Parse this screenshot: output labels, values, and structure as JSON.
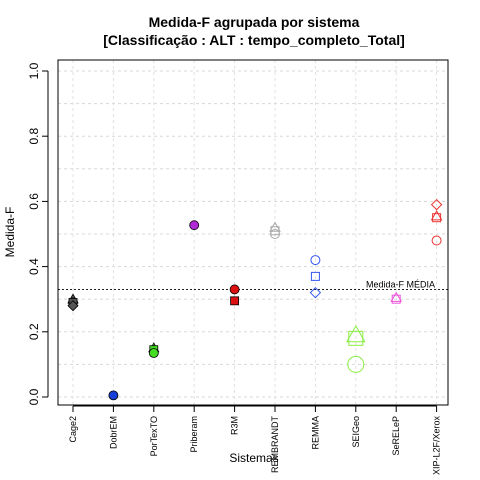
{
  "chart_data": {
    "type": "scatter",
    "title": "Medida-F agrupada por sistema",
    "subtitle": "[Classificação : ALT : tempo_completo_Total]",
    "xlabel": "Sistemas",
    "ylabel": "Medida-F",
    "ylim": [
      0,
      1
    ],
    "yticks": [
      "0.0",
      "0.2",
      "0.4",
      "0.6",
      "0.8",
      "1.0"
    ],
    "grid": true,
    "categories": [
      "Cage2",
      "DobrEM",
      "PorTexTO",
      "Priberam",
      "R3M",
      "REMBRANDT",
      "REMMA",
      "SEIGeo",
      "SeRELeP",
      "XIP-L2F/Xerox"
    ],
    "reference_line": {
      "label": "Medida-F MÉDIA",
      "value": 0.33
    },
    "series": [
      {
        "category": "Cage2",
        "color": "#555555",
        "points": [
          {
            "shape": "triangle",
            "filled": true,
            "value": 0.3
          },
          {
            "shape": "circle",
            "filled": true,
            "value": 0.29
          },
          {
            "shape": "square",
            "filled": true,
            "value": 0.29
          },
          {
            "shape": "diamond",
            "filled": true,
            "value": 0.28
          }
        ]
      },
      {
        "category": "DobrEM",
        "color": "#1a3fd6",
        "points": [
          {
            "shape": "circle",
            "filled": true,
            "value": 0.005
          }
        ]
      },
      {
        "category": "PorTexTO",
        "color": "#44dd22",
        "points": [
          {
            "shape": "triangle",
            "filled": true,
            "value": 0.15
          },
          {
            "shape": "square",
            "filled": true,
            "value": 0.145
          },
          {
            "shape": "circle",
            "filled": true,
            "value": 0.135
          }
        ]
      },
      {
        "category": "Priberam",
        "color": "#b02ad6",
        "points": [
          {
            "shape": "circle",
            "filled": true,
            "value": 0.527
          }
        ]
      },
      {
        "category": "R3M",
        "color": "#dd1111",
        "points": [
          {
            "shape": "circle",
            "filled": true,
            "value": 0.33
          },
          {
            "shape": "square",
            "filled": true,
            "value": 0.295
          }
        ]
      },
      {
        "category": "REMBRANDT",
        "color": "#a8a8a8",
        "points": [
          {
            "shape": "triangle",
            "filled": false,
            "value": 0.52
          },
          {
            "shape": "square",
            "filled": false,
            "value": 0.51
          },
          {
            "shape": "circle",
            "filled": false,
            "value": 0.5
          }
        ]
      },
      {
        "category": "REMMA",
        "color": "#3355ee",
        "points": [
          {
            "shape": "circle",
            "filled": false,
            "value": 0.42
          },
          {
            "shape": "square",
            "filled": false,
            "value": 0.37
          },
          {
            "shape": "diamond",
            "filled": false,
            "value": 0.32
          }
        ]
      },
      {
        "category": "SEIGeo",
        "color": "#88ee44",
        "points": [
          {
            "shape": "triangle",
            "filled": false,
            "value": 0.19,
            "size": "large"
          },
          {
            "shape": "square",
            "filled": false,
            "value": 0.18,
            "size": "large"
          },
          {
            "shape": "circle",
            "filled": false,
            "value": 0.1,
            "size": "large"
          }
        ]
      },
      {
        "category": "SeRELeP",
        "color": "#ee55dd",
        "points": [
          {
            "shape": "triangle",
            "filled": false,
            "value": 0.305
          },
          {
            "shape": "square",
            "filled": false,
            "value": 0.3
          }
        ]
      },
      {
        "category": "XIP-L2F/Xerox",
        "color": "#ee3333",
        "points": [
          {
            "shape": "diamond",
            "filled": false,
            "value": 0.59
          },
          {
            "shape": "triangle",
            "filled": false,
            "value": 0.555
          },
          {
            "shape": "square",
            "filled": false,
            "value": 0.55
          },
          {
            "shape": "circle",
            "filled": false,
            "value": 0.48
          }
        ]
      }
    ]
  }
}
